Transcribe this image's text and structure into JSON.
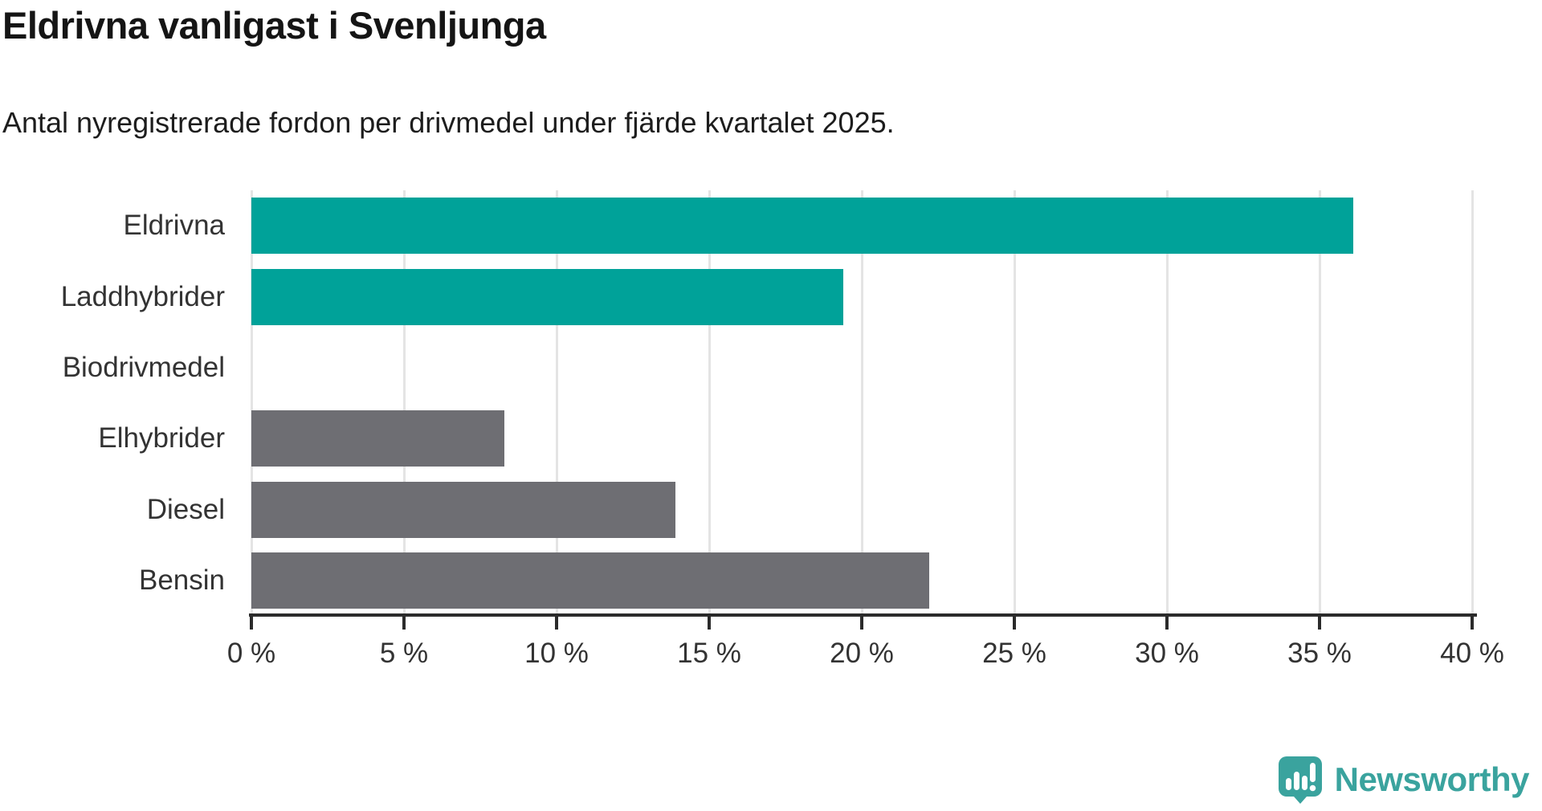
{
  "header": {
    "title": "Eldrivna vanligast i Svenljunga",
    "subtitle": "Antal nyregistrerade fordon per drivmedel under fjärde kvartalet 2025."
  },
  "chart_data": {
    "type": "bar",
    "orientation": "horizontal",
    "title": "Eldrivna vanligast i Svenljunga",
    "subtitle": "Antal nyregistrerade fordon per drivmedel under fjärde kvartalet 2025.",
    "categories": [
      "Eldrivna",
      "Laddhybrider",
      "Biodrivmedel",
      "Elhybrider",
      "Diesel",
      "Bensin"
    ],
    "values": [
      36.1,
      19.4,
      0,
      8.3,
      13.9,
      22.2
    ],
    "unit": "%",
    "bar_colors": [
      "#00a299",
      "#00a299",
      "#6e6e73",
      "#6e6e73",
      "#6e6e73",
      "#6e6e73"
    ],
    "highlight_color": "#00a299",
    "default_color": "#6e6e73",
    "xlabel": "",
    "ylabel": "",
    "xlim": [
      0,
      40
    ],
    "x_ticks": [
      0,
      5,
      10,
      15,
      20,
      25,
      30,
      35,
      40
    ],
    "x_tick_labels": [
      "0 %",
      "5 %",
      "10 %",
      "15 %",
      "20 %",
      "25 %",
      "30 %",
      "35 %",
      "40 %"
    ],
    "grid": "vertical",
    "legend": "none"
  },
  "footer": {
    "brand": "Newsworthy",
    "logo_color": "#3aa39e",
    "logo_icon": "bar-chart-speech-bubble-icon"
  },
  "colors": {
    "teal": "#00a299",
    "gray": "#6e6e73",
    "axis": "#2b2b2b",
    "gridline": "#e4e4e4",
    "label_text": "#333333",
    "title_text": "#151515"
  }
}
